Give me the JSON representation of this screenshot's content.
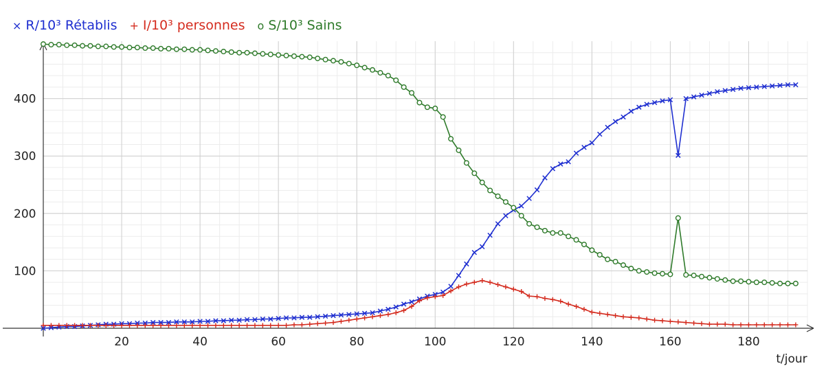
{
  "chart_data": {
    "type": "line",
    "xlabel": "t/jour",
    "ylabel": "",
    "xlim": [
      0,
      195
    ],
    "ylim": [
      0,
      500
    ],
    "xticks": [
      20,
      40,
      60,
      80,
      100,
      120,
      140,
      160,
      180
    ],
    "yticks": [
      100,
      200,
      300,
      400
    ],
    "grid": true,
    "legend_position": "top-left",
    "series": [
      {
        "name": "R/10³ Rétablis",
        "marker": "×",
        "color": "#1f2fd0",
        "x": [
          0,
          2,
          4,
          6,
          8,
          10,
          12,
          14,
          16,
          18,
          20,
          22,
          24,
          26,
          28,
          30,
          32,
          34,
          36,
          38,
          40,
          42,
          44,
          46,
          48,
          50,
          52,
          54,
          56,
          58,
          60,
          62,
          64,
          66,
          68,
          70,
          72,
          74,
          76,
          78,
          80,
          82,
          84,
          86,
          88,
          90,
          92,
          94,
          96,
          98,
          100,
          102,
          104,
          106,
          108,
          110,
          112,
          114,
          116,
          118,
          120,
          122,
          124,
          126,
          128,
          130,
          132,
          134,
          136,
          138,
          140,
          142,
          144,
          146,
          148,
          150,
          152,
          154,
          156,
          158,
          160,
          162,
          164,
          166,
          168,
          170,
          172,
          174,
          176,
          178,
          180,
          182,
          184,
          186,
          188,
          190,
          192
        ],
        "y": [
          0,
          1,
          2,
          3,
          3,
          4,
          5,
          6,
          7,
          7,
          8,
          8,
          9,
          9,
          10,
          10,
          10,
          11,
          11,
          11,
          12,
          12,
          13,
          13,
          14,
          14,
          15,
          15,
          16,
          16,
          17,
          18,
          18,
          19,
          19,
          20,
          21,
          22,
          23,
          24,
          25,
          26,
          27,
          30,
          33,
          37,
          42,
          46,
          51,
          56,
          59,
          63,
          73,
          92,
          112,
          132,
          142,
          162,
          182,
          196,
          206,
          213,
          226,
          241,
          262,
          278,
          286,
          290,
          305,
          315,
          323,
          338,
          350,
          360,
          368,
          378,
          385,
          390,
          393,
          396,
          398,
          301,
          400,
          403,
          406,
          409,
          412,
          414,
          416,
          418,
          419,
          420,
          421,
          422,
          423,
          424,
          424
        ]
      },
      {
        "name": "I/10³ personnes",
        "marker": "+",
        "color": "#d42b1e",
        "x": [
          0,
          2,
          4,
          6,
          8,
          10,
          12,
          14,
          16,
          18,
          20,
          22,
          24,
          26,
          28,
          30,
          32,
          34,
          36,
          38,
          40,
          42,
          44,
          46,
          48,
          50,
          52,
          54,
          56,
          58,
          60,
          62,
          64,
          66,
          68,
          70,
          72,
          74,
          76,
          78,
          80,
          82,
          84,
          86,
          88,
          90,
          92,
          94,
          96,
          98,
          100,
          102,
          104,
          106,
          108,
          110,
          112,
          114,
          116,
          118,
          120,
          122,
          124,
          126,
          128,
          130,
          132,
          134,
          136,
          138,
          140,
          142,
          144,
          146,
          148,
          150,
          152,
          154,
          156,
          158,
          160,
          162,
          164,
          166,
          168,
          170,
          172,
          174,
          176,
          178,
          180,
          182,
          184,
          186,
          188,
          190,
          192
        ],
        "y": [
          5,
          5,
          5,
          5,
          5,
          5,
          5,
          5,
          5,
          5,
          5,
          5,
          5,
          5,
          5,
          5,
          5,
          5,
          5,
          5,
          5,
          5,
          5,
          5,
          5,
          5,
          5,
          5,
          5,
          5,
          5,
          5,
          6,
          6,
          7,
          8,
          9,
          10,
          12,
          14,
          16,
          18,
          20,
          22,
          24,
          27,
          31,
          38,
          48,
          53,
          55,
          57,
          65,
          72,
          77,
          80,
          83,
          80,
          76,
          72,
          68,
          64,
          56,
          55,
          52,
          50,
          47,
          42,
          38,
          33,
          28,
          26,
          24,
          22,
          20,
          19,
          18,
          16,
          14,
          13,
          12,
          11,
          10,
          9,
          8,
          7,
          7,
          7,
          6,
          6,
          6,
          6,
          6,
          6,
          6,
          6,
          6
        ]
      },
      {
        "name": "S/10³ Sains",
        "marker": "o",
        "color": "#2e7a2a",
        "x": [
          0,
          2,
          4,
          6,
          8,
          10,
          12,
          14,
          16,
          18,
          20,
          22,
          24,
          26,
          28,
          30,
          32,
          34,
          36,
          38,
          40,
          42,
          44,
          46,
          48,
          50,
          52,
          54,
          56,
          58,
          60,
          62,
          64,
          66,
          68,
          70,
          72,
          74,
          76,
          78,
          80,
          82,
          84,
          86,
          88,
          90,
          92,
          94,
          96,
          98,
          100,
          102,
          104,
          106,
          108,
          110,
          112,
          114,
          116,
          118,
          120,
          122,
          124,
          126,
          128,
          130,
          132,
          134,
          136,
          138,
          140,
          142,
          144,
          146,
          148,
          150,
          152,
          154,
          156,
          158,
          160,
          162,
          164,
          166,
          168,
          170,
          172,
          174,
          176,
          178,
          180,
          182,
          184,
          186,
          188,
          190,
          192
        ],
        "y": [
          495,
          494,
          494,
          493,
          493,
          492,
          492,
          491,
          491,
          490,
          490,
          489,
          489,
          488,
          488,
          487,
          487,
          486,
          486,
          485,
          485,
          484,
          483,
          482,
          481,
          480,
          480,
          479,
          478,
          477,
          476,
          475,
          474,
          473,
          472,
          470,
          468,
          466,
          464,
          461,
          458,
          454,
          450,
          445,
          440,
          432,
          420,
          410,
          393,
          385,
          383,
          368,
          330,
          310,
          288,
          270,
          254,
          240,
          230,
          220,
          210,
          196,
          182,
          176,
          170,
          166,
          166,
          160,
          154,
          146,
          136,
          128,
          120,
          116,
          110,
          104,
          100,
          98,
          96,
          95,
          94,
          192,
          93,
          92,
          90,
          88,
          86,
          84,
          82,
          82,
          81,
          80,
          80,
          79,
          78,
          78,
          78
        ]
      }
    ]
  }
}
